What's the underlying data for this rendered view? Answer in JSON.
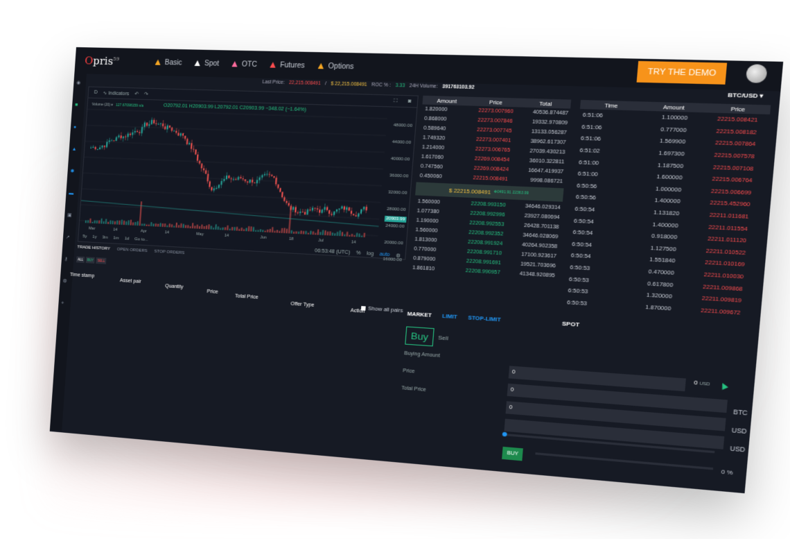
{
  "header": {
    "logo": "Opris",
    "logo_sup": "59",
    "nav": [
      {
        "label": "Basic",
        "icon": "basic-icon",
        "color": "#f5a623"
      },
      {
        "label": "Spot",
        "icon": "spot-icon",
        "color": "#ffffff"
      },
      {
        "label": "OTC",
        "icon": "otc-icon",
        "color": "#ff6b9d"
      },
      {
        "label": "Futures",
        "icon": "futures-icon",
        "color": "#ff4d4f"
      },
      {
        "label": "Options",
        "icon": "options-icon",
        "color": "#f5a623"
      }
    ],
    "demo_button": "TRY THE DEMO",
    "demo_color": "#f7931a"
  },
  "ticker": {
    "last_price_label": "Last Price:",
    "last_price_red": "22,215.008491",
    "last_price_yellow": "$ 22,215.008491",
    "roc_label": "ROC % :",
    "roc_value": "3.33",
    "volume_label": "24H Volume:",
    "volume_value": "391763103.92",
    "pair": "BTC/USD ▾"
  },
  "chart": {
    "interval": "D",
    "indicators_label": "Indicators",
    "volume_label": "Volume (20)",
    "vol_values": "127.67098159  n/a",
    "ohlc": "O20792.01  H20903.99  L20792.01  C20903.99  −348.02 (−1.64%)",
    "y_ticks": [
      "48000.00",
      "44000.00",
      "40000.00",
      "36000.00",
      "32000.00",
      "28000.00",
      "24000.00",
      "20000.00",
      "16000.00"
    ],
    "x_ticks": [
      "Mar",
      "14",
      "Apr",
      "14",
      "May",
      "14",
      "Jun",
      "18",
      "Jul",
      "14"
    ],
    "last_price_tag": "20903.99",
    "ranges": [
      "5y",
      "1y",
      "3m",
      "1m",
      "1d",
      "Go to..."
    ],
    "time": "06:53:48 (UTC)",
    "pct_label": "%",
    "log_label": "log",
    "auto_label": "auto"
  },
  "history": {
    "tabs": [
      "TRADE HISTORY",
      "OPEN ORDERS",
      "STOP ORDERS"
    ],
    "filters": [
      "ALL",
      "BUY",
      "SELL"
    ],
    "columns": [
      "Time stamp",
      "Asset pair",
      "Quantity",
      "Price",
      "Total Price",
      "Offer Type",
      "Action"
    ],
    "show_all_pairs": "Show all pairs"
  },
  "orderbook": {
    "columns": [
      "Amount",
      "Price",
      "Total"
    ],
    "asks": [
      [
        "1.820000",
        "22273.007960",
        "40536.874487"
      ],
      [
        "0.868000",
        "22273.007846",
        "19332.970809"
      ],
      [
        "0.589640",
        "22273.007745",
        "13133.056287"
      ],
      [
        "1.749320",
        "22273.007401",
        "38962.617307"
      ],
      [
        "1.214000",
        "22273.006765",
        "27039.430213"
      ],
      [
        "1.617060",
        "22269.008454",
        "36010.322811"
      ],
      [
        "0.747560",
        "22269.008424",
        "16647.419937"
      ],
      [
        "0.450060",
        "22215.008491",
        "9998.086721"
      ]
    ],
    "mid_price": "$ 22215.008491",
    "mid_sub": "✥0491.91 22363.99",
    "bids": [
      [
        "1.560000",
        "22208.993150",
        "34646.029314"
      ],
      [
        "1.077380",
        "22208.992996",
        "23927.080694"
      ],
      [
        "1.190000",
        "22208.992553",
        "26428.701138"
      ],
      [
        "1.560000",
        "22208.992352",
        "34646.028069"
      ],
      [
        "1.813000",
        "22208.991924",
        "40264.902358"
      ],
      [
        "0.770000",
        "22208.991710",
        "17100.923617"
      ],
      [
        "0.879000",
        "22208.991691",
        "19521.703696"
      ],
      [
        "1.861810",
        "22208.990957",
        "41348.920895"
      ]
    ]
  },
  "trades": {
    "columns": [
      "Time",
      "Amount",
      "Price"
    ],
    "rows": [
      [
        "6:51:06",
        "1.100000",
        "22215.008421"
      ],
      [
        "6:51:06",
        "0.777000",
        "22215.008182"
      ],
      [
        "6:51:06",
        "1.569900",
        "22215.007864"
      ],
      [
        "6:51:02",
        "1.697300",
        "22215.007578"
      ],
      [
        "6:51:00",
        "1.187500",
        "22215.007108"
      ],
      [
        "6:51:00",
        "1.600000",
        "22215.006764"
      ],
      [
        "6:50:56",
        "1.000000",
        "22215.006699"
      ],
      [
        "6:50:56",
        "1.400000",
        "22215.452960"
      ],
      [
        "6:50:54",
        "1.131820",
        "22211.011681"
      ],
      [
        "6:50:54",
        "1.400000",
        "22211.011554"
      ],
      [
        "6:50:54",
        "0.918000",
        "22211.011120"
      ],
      [
        "6:50:54",
        "1.127500",
        "22211.010522"
      ],
      [
        "6:50:54",
        "1.551840",
        "22211.010169"
      ],
      [
        "6:50:53",
        "0.470000",
        "22211.010030"
      ],
      [
        "6:50:53",
        "0.617800",
        "22211.009868"
      ],
      [
        "6:50:53",
        "1.320000",
        "22211.009819"
      ],
      [
        "6:50:53",
        "1.870000",
        "22211.009672"
      ]
    ]
  },
  "order_form": {
    "tabs": [
      "MARKET",
      "LIMIT",
      "STOP-LIMIT"
    ],
    "title": "SPOT",
    "buy_label": "Buy",
    "sell_label": "Sell",
    "buying_amount_label": "Buying Amount",
    "price_label": "Price",
    "total_price_label": "Total Price",
    "balance_value": "0",
    "balance_unit": "USD",
    "inputs": [
      {
        "value": "0",
        "unit": ""
      },
      {
        "value": "0",
        "unit": "BTC"
      },
      {
        "value": "0",
        "unit": "USD"
      },
      {
        "value": "",
        "unit": "USD"
      }
    ],
    "buy_button": "BUY",
    "percent": "0 %"
  }
}
